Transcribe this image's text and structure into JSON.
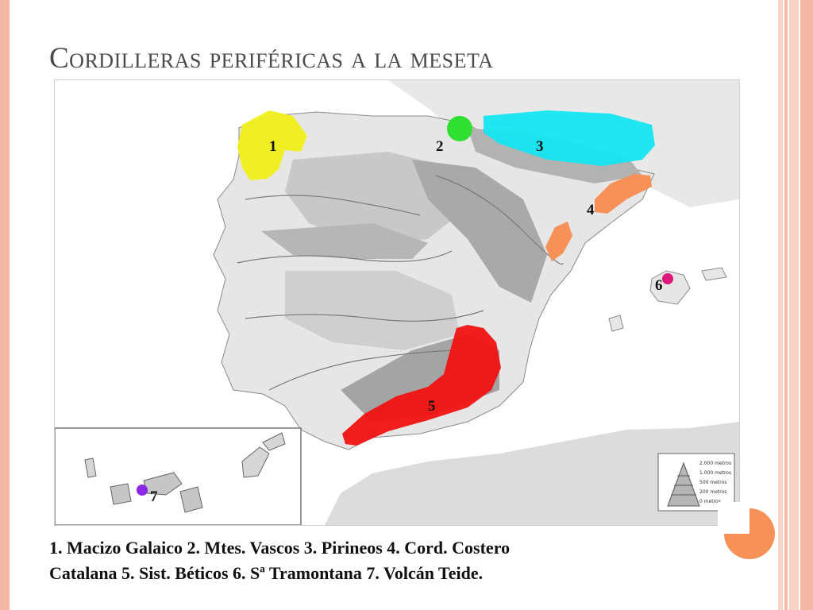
{
  "slide": {
    "title": "Cordilleras periféricas a la meseta",
    "caption_line1": "1. Macizo Galaico   2. Mtes. Vascos   3. Pirineos   4. Cord. Costero",
    "caption_line2": "Catalana   5. Sist. Béticos   6. Sª Tramontana   7. Volcán Teide."
  },
  "map": {
    "markers": [
      {
        "id": "1",
        "label": "1",
        "color": "#f0ee1a"
      },
      {
        "id": "2",
        "label": "2",
        "color": "#30e030"
      },
      {
        "id": "3",
        "label": "3",
        "color": "#14e6f0"
      },
      {
        "id": "4",
        "label": "4",
        "color": "#f79157"
      },
      {
        "id": "5",
        "label": "5",
        "color": "#f21212"
      },
      {
        "id": "6",
        "label": "6",
        "color": "#e0187c"
      },
      {
        "id": "7",
        "label": "7",
        "color": "#8a28e6"
      }
    ],
    "legend": [
      "2.000 metros",
      "1.000 metros",
      "500 metros",
      "200 metros",
      "0 metros"
    ]
  },
  "colors": {
    "accent": "#f79157",
    "border": "#f4b9a6",
    "sea": "#ffffff",
    "land_low": "#e8e8e8",
    "land_mid": "#b4b4b4",
    "land_high": "#8c8c8c"
  }
}
